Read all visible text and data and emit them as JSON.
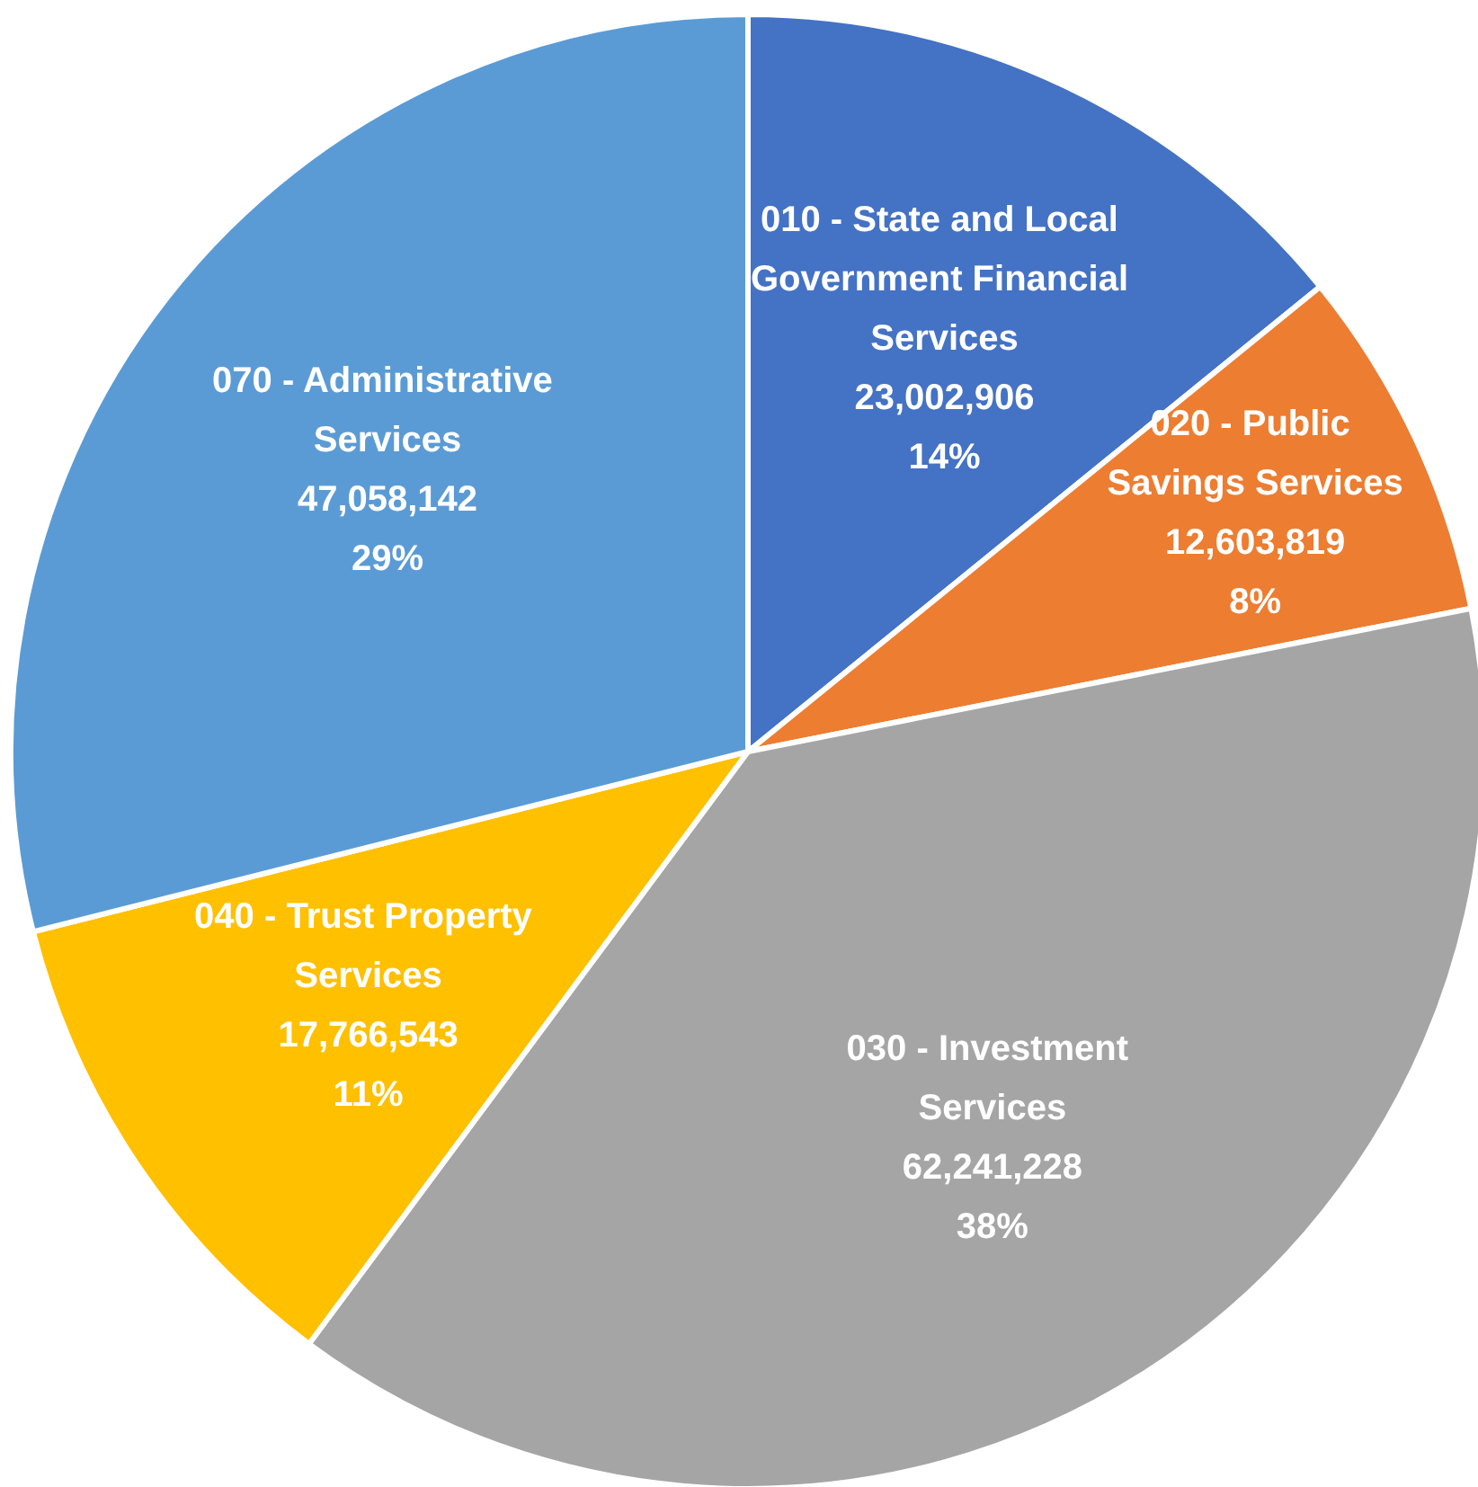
{
  "chart_data": {
    "type": "pie",
    "categories": [
      "010 - State and Local Government Financial Services",
      "020 - Public Savings Services",
      "030 - Investment Services",
      "040 - Trust Property Services",
      "070 - Administrative Services"
    ],
    "values": [
      23002906,
      12603819,
      62241228,
      17766543,
      47058142
    ],
    "value_labels": [
      "23,002,906\n14%",
      "12,603,819\n8%",
      "62,241,228\n38%",
      "17,766,543\n11%",
      "47,058,142\n29%"
    ],
    "colors": [
      "#4472c4",
      "#ed7d31",
      "#a5a5a5",
      "#ffc000",
      "#5b9bd5"
    ],
    "legend": false
  }
}
